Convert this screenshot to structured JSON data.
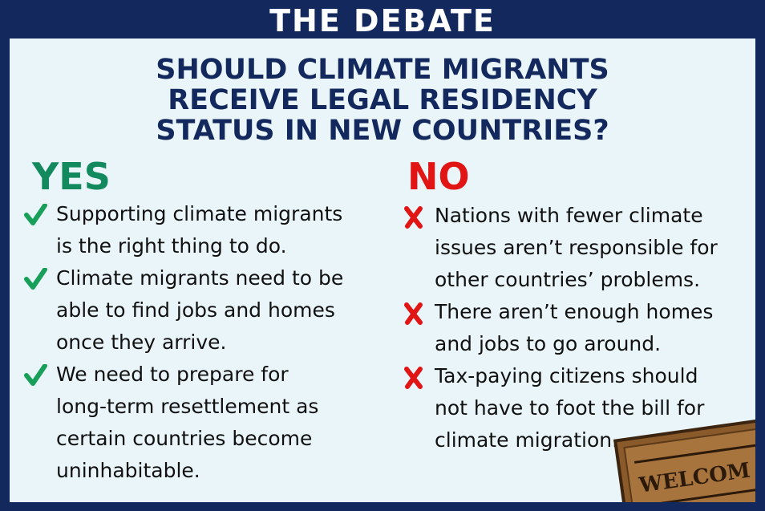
{
  "header": {
    "title": "THE DEBATE"
  },
  "question": {
    "lines": [
      "SHOULD CLIMATE MIGRANTS",
      "RECEIVE LEGAL RESIDENCY",
      "STATUS IN NEW COUNTRIES?"
    ]
  },
  "yes": {
    "label": "YES",
    "items": [
      [
        "Supporting climate migrants",
        "is the right thing to do."
      ],
      [
        "Climate migrants need to be",
        "able to find jobs and homes",
        "once they arrive."
      ],
      [
        "We need to prepare for",
        "long-term resettlement as",
        "certain countries become",
        "uninhabitable."
      ]
    ]
  },
  "no": {
    "label": "NO",
    "items": [
      [
        "Nations with fewer climate",
        "issues aren’t responsible for",
        "other countries’ problems."
      ],
      [
        "There aren’t enough homes",
        "and jobs to go around."
      ],
      [
        "Tax-paying citizens should",
        "not have to foot the bill for",
        "climate migration."
      ]
    ]
  },
  "image": {
    "text": "WELCOM"
  }
}
